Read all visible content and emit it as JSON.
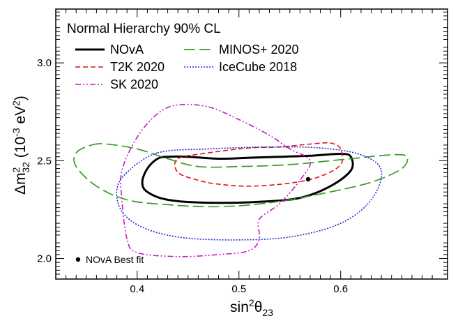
{
  "chart_data": {
    "type": "contour",
    "title": "Normal Hierarchy 90% CL",
    "xlabel": {
      "base": "sin",
      "sup": "2",
      "theta": "θ",
      "sub": "23"
    },
    "ylabel": {
      "delta": "Δm",
      "sup": "2",
      "sub": "32",
      "unit_open": " (10",
      "unit_exp": "-3",
      "unit_mid": " eV",
      "unit_sup": "2",
      "unit_close": ")"
    },
    "xlim": [
      0.32,
      0.705
    ],
    "ylim": [
      1.895,
      3.275
    ],
    "xticks": [
      0.4,
      0.5,
      0.6
    ],
    "xtick_labels": [
      "0.4",
      "0.5",
      "0.6"
    ],
    "yticks": [
      2.0,
      2.5,
      3.0
    ],
    "ytick_labels": [
      "2.0",
      "2.5",
      "3.0"
    ],
    "legend_position": "top-left",
    "series": [
      {
        "name": "NOvA",
        "color": "#000000",
        "style": "solid",
        "points": [
          [
            0.43,
            2.52
          ],
          [
            0.45,
            2.52
          ],
          [
            0.48,
            2.51
          ],
          [
            0.51,
            2.515
          ],
          [
            0.54,
            2.52
          ],
          [
            0.57,
            2.525
          ],
          [
            0.6,
            2.535
          ],
          [
            0.61,
            2.52
          ],
          [
            0.61,
            2.45
          ],
          [
            0.59,
            2.37
          ],
          [
            0.56,
            2.31
          ],
          [
            0.52,
            2.29
          ],
          [
            0.47,
            2.285
          ],
          [
            0.43,
            2.3
          ],
          [
            0.41,
            2.34
          ],
          [
            0.405,
            2.39
          ],
          [
            0.41,
            2.46
          ],
          [
            0.42,
            2.51
          ],
          [
            0.43,
            2.52
          ]
        ]
      },
      {
        "name": "T2K 2020",
        "color": "#e0101a",
        "style": "dashed",
        "points": [
          [
            0.44,
            2.51
          ],
          [
            0.47,
            2.54
          ],
          [
            0.51,
            2.565
          ],
          [
            0.54,
            2.57
          ],
          [
            0.57,
            2.585
          ],
          [
            0.59,
            2.59
          ],
          [
            0.6,
            2.56
          ],
          [
            0.6,
            2.48
          ],
          [
            0.58,
            2.42
          ],
          [
            0.55,
            2.385
          ],
          [
            0.51,
            2.37
          ],
          [
            0.48,
            2.38
          ],
          [
            0.46,
            2.4
          ],
          [
            0.44,
            2.44
          ],
          [
            0.44,
            2.51
          ]
        ]
      },
      {
        "name": "SK 2020",
        "color": "#c818c8",
        "style": "dashdotdot",
        "points": [
          [
            0.39,
            2.1
          ],
          [
            0.385,
            2.3
          ],
          [
            0.385,
            2.45
          ],
          [
            0.4,
            2.62
          ],
          [
            0.42,
            2.74
          ],
          [
            0.44,
            2.785
          ],
          [
            0.47,
            2.775
          ],
          [
            0.5,
            2.71
          ],
          [
            0.53,
            2.63
          ],
          [
            0.55,
            2.56
          ],
          [
            0.57,
            2.5
          ],
          [
            0.56,
            2.4
          ],
          [
            0.54,
            2.28
          ],
          [
            0.52,
            2.2
          ],
          [
            0.52,
            2.1
          ],
          [
            0.51,
            2.04
          ],
          [
            0.48,
            2.02
          ],
          [
            0.44,
            2.01
          ],
          [
            0.4,
            2.03
          ],
          [
            0.39,
            2.1
          ]
        ]
      },
      {
        "name": "MINOS+ 2020",
        "color": "#3a9a28",
        "style": "longdash",
        "points": [
          [
            0.355,
            2.58
          ],
          [
            0.37,
            2.585
          ],
          [
            0.4,
            2.56
          ],
          [
            0.43,
            2.51
          ],
          [
            0.46,
            2.47
          ],
          [
            0.5,
            2.47
          ],
          [
            0.55,
            2.48
          ],
          [
            0.6,
            2.505
          ],
          [
            0.65,
            2.53
          ],
          [
            0.665,
            2.52
          ],
          [
            0.66,
            2.46
          ],
          [
            0.63,
            2.39
          ],
          [
            0.58,
            2.33
          ],
          [
            0.53,
            2.285
          ],
          [
            0.48,
            2.265
          ],
          [
            0.43,
            2.275
          ],
          [
            0.39,
            2.3
          ],
          [
            0.36,
            2.37
          ],
          [
            0.34,
            2.47
          ],
          [
            0.34,
            2.54
          ],
          [
            0.355,
            2.58
          ]
        ]
      },
      {
        "name": "IceCube 2018",
        "color": "#1a2ad8",
        "style": "dotted",
        "points": [
          [
            0.42,
            2.54
          ],
          [
            0.47,
            2.56
          ],
          [
            0.53,
            2.57
          ],
          [
            0.58,
            2.565
          ],
          [
            0.62,
            2.53
          ],
          [
            0.64,
            2.45
          ],
          [
            0.63,
            2.3
          ],
          [
            0.6,
            2.18
          ],
          [
            0.55,
            2.11
          ],
          [
            0.49,
            2.095
          ],
          [
            0.44,
            2.11
          ],
          [
            0.405,
            2.16
          ],
          [
            0.385,
            2.24
          ],
          [
            0.38,
            2.35
          ],
          [
            0.39,
            2.44
          ],
          [
            0.42,
            2.54
          ]
        ]
      }
    ],
    "best_fit": {
      "x": 0.568,
      "y": 2.405,
      "label": "NOvA Best fit"
    }
  }
}
